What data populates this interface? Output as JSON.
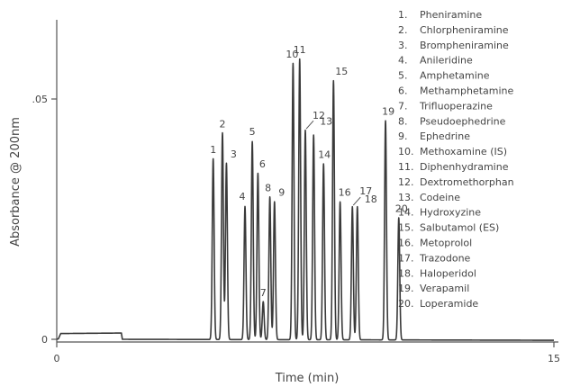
{
  "chart_data": {
    "type": "line",
    "title": "",
    "xlabel": "Time (min)",
    "ylabel": "Absorbance @ 200nm",
    "xlim": [
      0,
      15
    ],
    "ylim": [
      0,
      0.06
    ],
    "x_ticks": [
      {
        "value": 0,
        "label": "0"
      },
      {
        "value": 15,
        "label": "15"
      }
    ],
    "y_ticks": [
      {
        "value": 0,
        "label": "0"
      },
      {
        "value": 0.05,
        "label": ".05"
      }
    ],
    "grid": false,
    "legend_position": "top-right",
    "line_color": "#3a3a3a",
    "baseline": [
      {
        "x": 0.0,
        "y": 0.0
      },
      {
        "x": 0.05,
        "y": 0.0001
      },
      {
        "x": 0.12,
        "y": 0.0012
      },
      {
        "x": 1.95,
        "y": 0.0013
      },
      {
        "x": 1.98,
        "y": 0.0
      },
      {
        "x": 15.0,
        "y": -0.0002
      }
    ],
    "peaks": [
      {
        "id": 1,
        "name": "Pheniramine",
        "rt": 4.72,
        "height": 0.0376
      },
      {
        "id": 2,
        "name": "Chlorpheniramine",
        "rt": 5.0,
        "height": 0.043
      },
      {
        "id": 3,
        "name": "Brompheniramine",
        "rt": 5.12,
        "height": 0.0367
      },
      {
        "id": 4,
        "name": "Anileridine",
        "rt": 5.68,
        "height": 0.0277
      },
      {
        "id": 5,
        "name": "Amphetamine",
        "rt": 5.9,
        "height": 0.0412
      },
      {
        "id": 6,
        "name": "Methamphetamine",
        "rt": 6.07,
        "height": 0.0346
      },
      {
        "id": 7,
        "name": "Trifluoperazine",
        "rt": 6.23,
        "height": 0.0079
      },
      {
        "id": 8,
        "name": "Pseudoephedrine",
        "rt": 6.43,
        "height": 0.0297
      },
      {
        "id": 9,
        "name": "Ephedrine",
        "rt": 6.57,
        "height": 0.0287
      },
      {
        "id": 10,
        "name": "Methoxamine (IS)",
        "rt": 7.13,
        "height": 0.0575
      },
      {
        "id": 11,
        "name": "Diphenhydramine",
        "rt": 7.33,
        "height": 0.0584
      },
      {
        "id": 12,
        "name": "Dextromethorphan",
        "rt": 7.5,
        "height": 0.0436
      },
      {
        "id": 13,
        "name": "Codeine",
        "rt": 7.75,
        "height": 0.0426
      },
      {
        "id": 14,
        "name": "Hydroxyzine",
        "rt": 8.05,
        "height": 0.0366
      },
      {
        "id": 15,
        "name": "Salbutamol (ES)",
        "rt": 8.35,
        "height": 0.0539
      },
      {
        "id": 16,
        "name": "Metoprolol",
        "rt": 8.55,
        "height": 0.0287
      },
      {
        "id": 17,
        "name": "Trazodone",
        "rt": 8.92,
        "height": 0.0277
      },
      {
        "id": 18,
        "name": "Haloperidol",
        "rt": 9.07,
        "height": 0.0277
      },
      {
        "id": 19,
        "name": "Verapamil",
        "rt": 9.92,
        "height": 0.0456
      },
      {
        "id": 20,
        "name": "Loperamide",
        "rt": 10.32,
        "height": 0.0254
      }
    ]
  }
}
